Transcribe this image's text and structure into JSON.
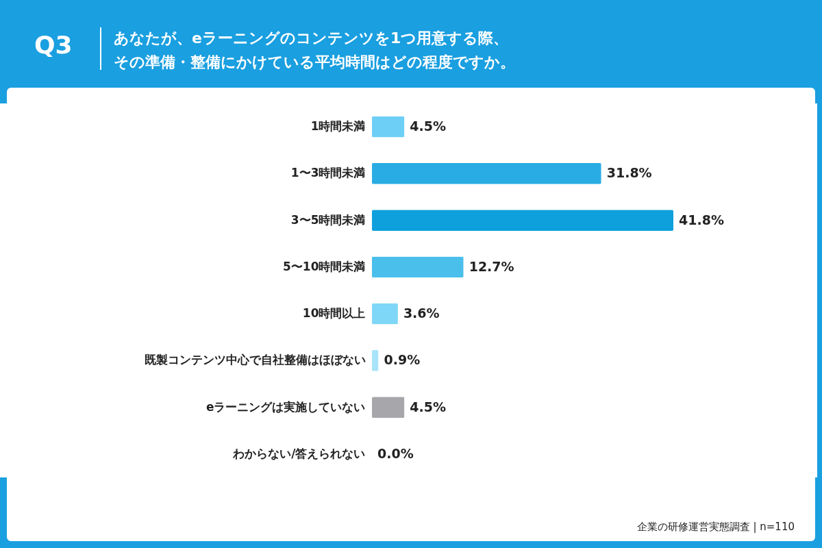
{
  "chart_data": {
    "type": "bar",
    "orientation": "horizontal",
    "title": "Q3",
    "subtitle": "あなたが、eラーニングのコンテンツを1つ用意する際、その準備・整備にかけている平均時間はどの程度ですか。",
    "categories": [
      "1時間未満",
      "1〜3時間未満",
      "3〜5時間未満",
      "5〜10時間未満",
      "10時間以上",
      "既製コンテンツ中心で自社整備はほぼない",
      "eラーニングは実施していない",
      "わからない/答えられない"
    ],
    "values": [
      4.5,
      31.8,
      41.8,
      12.7,
      3.6,
      0.9,
      4.5,
      0.0
    ],
    "colors": [
      "#6dcff6",
      "#29ace3",
      "#0ea0dc",
      "#4bbfec",
      "#7fd7f7",
      "#a8e4fa",
      "#a7a6ab",
      "#a7a6ab"
    ],
    "value_labels": [
      "4.5%",
      "31.8%",
      "41.8%",
      "12.7%",
      "3.6%",
      "0.9%",
      "4.5%",
      "0.0%"
    ],
    "annotations": [
      "企業の研修運営実態調査 | n=110"
    ]
  }
}
